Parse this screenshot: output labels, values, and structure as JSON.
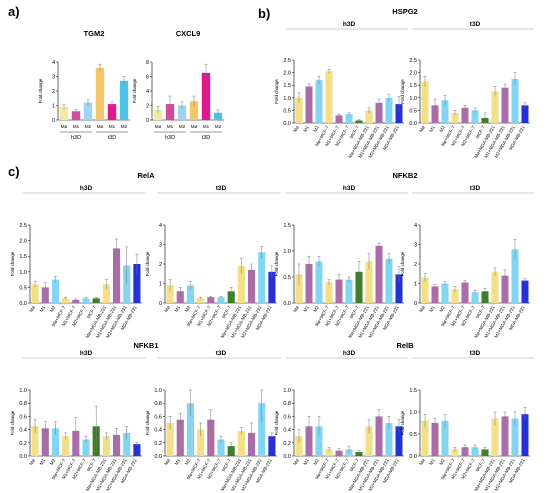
{
  "panels": {
    "a": {
      "letter": "a)"
    },
    "b": {
      "letter": "b)",
      "title": "HSPG2"
    },
    "c": {
      "letter": "c)"
    }
  },
  "colors": {
    "Mø": "#f2df86",
    "M1": "#aa6da8",
    "M2": "#82d6f4",
    "Mø+MCF-7": "#f2df86",
    "M1+MCF-7": "#aa6da8",
    "M2+MCF-7": "#82d6f4",
    "MCF-7": "#3f7d2a",
    "Mø+MDA-MB-231": "#f2df86",
    "M1+MDA-MB-231": "#aa6da8",
    "M2+MDA-MB-231": "#82d6f4",
    "MDA-MB-231": "#2431d6",
    "a_h3D_Mø": "#f6e7a3",
    "a_h3D_M1": "#d14a9e",
    "a_h3D_M2": "#9fd4f5",
    "a_t3D_Mø": "#f2c96a",
    "a_t3D_M1": "#e0188b",
    "a_t3D_M2": "#4fc3e6"
  },
  "chart_data": [
    {
      "id": "TGM2",
      "type": "bar",
      "title": "TGM2",
      "ylabel": "Fold change",
      "ylim": [
        0,
        4
      ],
      "yticks": [
        0,
        1,
        2,
        3,
        4
      ],
      "groups": [
        "h3D",
        "t3D"
      ],
      "categories": [
        "Mø",
        "M1",
        "M2",
        "Mø",
        "M1",
        "M2"
      ],
      "values": [
        0.9,
        0.6,
        1.2,
        3.6,
        1.1,
        2.7
      ],
      "errors": [
        0.15,
        0.15,
        0.2,
        0.25,
        0.15,
        0.3
      ],
      "colors": [
        "a_h3D_Mø",
        "a_h3D_M1",
        "a_h3D_M2",
        "a_t3D_Mø",
        "a_t3D_M1",
        "a_t3D_M2"
      ]
    },
    {
      "id": "CXCL9",
      "type": "bar",
      "title": "CXCL9",
      "ylabel": "Fold change",
      "ylim": [
        0,
        8
      ],
      "yticks": [
        0,
        2,
        4,
        6,
        8
      ],
      "groups": [
        "h3D",
        "t3D"
      ],
      "categories": [
        "Mø",
        "M1",
        "M2",
        "Mø",
        "M1",
        "M2"
      ],
      "values": [
        1.4,
        2.2,
        2.0,
        2.6,
        6.5,
        1.0
      ],
      "errors": [
        0.5,
        1.1,
        0.5,
        0.7,
        1.2,
        0.4
      ],
      "colors": [
        "a_h3D_Mø",
        "a_h3D_M1",
        "a_h3D_M2",
        "a_t3D_Mø",
        "a_t3D_M1",
        "a_t3D_M2"
      ]
    },
    {
      "id": "HSPG2-h3D",
      "type": "bar",
      "title": "h3D",
      "ylabel": "Fold change",
      "ylim": [
        0,
        2.5
      ],
      "yticks": [
        0.0,
        0.5,
        1.0,
        1.5,
        2.0,
        2.5
      ],
      "categories": [
        "Mø",
        "M1",
        "M2",
        "Mø+MCF-7",
        "M1+MCF-7",
        "M2+MCF-7",
        "MCF-7",
        "Mø+MDA-MB-231",
        "M1+MDA-MB-231",
        "M2+MDA-MB-231",
        "MDA-MB-231"
      ],
      "values": [
        1.0,
        1.45,
        1.7,
        2.05,
        0.3,
        0.35,
        0.1,
        0.5,
        0.8,
        1.0,
        0.75
      ],
      "errors": [
        0.2,
        0.1,
        0.15,
        0.08,
        0.05,
        0.05,
        0.03,
        0.1,
        0.15,
        0.15,
        0.3
      ]
    },
    {
      "id": "HSPG2-t3D",
      "type": "bar",
      "title": "t3D",
      "ylabel": "Fold change",
      "ylim": [
        0,
        2.5
      ],
      "yticks": [
        0.0,
        0.5,
        1.0,
        1.5,
        2.0,
        2.5
      ],
      "categories": [
        "Mø",
        "M1",
        "M2",
        "Mø+MCF-7",
        "M1+MCF-7",
        "M2+MCF-7",
        "MCF-7",
        "Mø+MDA-MB-231",
        "M1+MDA-MB-231",
        "M2+MDA-MB-231",
        "MDA-MB-231"
      ],
      "values": [
        1.65,
        0.7,
        0.9,
        0.4,
        0.6,
        0.5,
        0.2,
        1.25,
        1.4,
        1.75,
        0.7
      ],
      "errors": [
        0.2,
        0.25,
        0.2,
        0.1,
        0.1,
        0.1,
        0.2,
        0.2,
        0.15,
        0.25,
        0.1
      ]
    },
    {
      "id": "RelA-h3D",
      "type": "bar",
      "title": "h3D",
      "ylabel": "Fold change",
      "ylim": [
        0,
        2.5
      ],
      "yticks": [
        0.0,
        0.5,
        1.0,
        1.5,
        2.0,
        2.5
      ],
      "categories": [
        "Mø",
        "M1",
        "M2",
        "Mø+MCF-7",
        "M1+MCF-7",
        "M2+MCF-7",
        "MCF-7",
        "Mø+MDA-MB-231",
        "M1+MDA-MB-231",
        "M2+MDA-MB-231",
        "MDA-MB-231"
      ],
      "values": [
        0.6,
        0.5,
        0.75,
        0.15,
        0.1,
        0.15,
        0.15,
        0.6,
        1.75,
        1.2,
        1.25
      ],
      "errors": [
        0.1,
        0.15,
        0.1,
        0.03,
        0.03,
        0.03,
        0.03,
        0.15,
        0.3,
        0.6,
        0.3
      ]
    },
    {
      "id": "RelA-t3D",
      "type": "bar",
      "title": "t3D",
      "ylabel": "Fold change",
      "ylim": [
        0,
        4
      ],
      "yticks": [
        0,
        1,
        2,
        3,
        4
      ],
      "categories": [
        "Mø",
        "M1",
        "M2",
        "Mø+MCF-7",
        "M1+MCF-7",
        "M2+MCF-7",
        "MCF-7",
        "Mø+MDA-MB-231",
        "M1+MDA-MB-231",
        "M2+MDA-MB-231",
        "MDA-MB-231"
      ],
      "values": [
        0.9,
        0.6,
        0.9,
        0.25,
        0.3,
        0.3,
        0.6,
        1.9,
        1.7,
        2.6,
        1.6
      ],
      "errors": [
        0.3,
        0.2,
        0.2,
        0.05,
        0.05,
        0.05,
        0.2,
        0.4,
        0.3,
        0.3,
        0.3
      ]
    },
    {
      "id": "NFKB2-h3D",
      "type": "bar",
      "title": "h3D",
      "ylabel": "Fold change",
      "ylim": [
        0,
        1.5
      ],
      "yticks": [
        0.0,
        0.5,
        1.0,
        1.5
      ],
      "categories": [
        "Mø",
        "M1",
        "M2",
        "Mø+MCF-7",
        "M1+MCF-7",
        "M2+MCF-7",
        "MCF-7",
        "Mø+MDA-MB-231",
        "M1+MDA-MB-231",
        "M2+MDA-MB-231",
        "MDA-MB-231"
      ],
      "values": [
        0.55,
        0.75,
        0.8,
        0.4,
        0.45,
        0.45,
        0.6,
        0.8,
        1.1,
        0.85,
        0.55
      ],
      "errors": [
        0.2,
        0.15,
        0.1,
        0.05,
        0.1,
        0.05,
        0.2,
        0.15,
        0.05,
        0.1,
        0.15
      ]
    },
    {
      "id": "NFKB2-t3D",
      "type": "bar",
      "title": "t3D",
      "ylabel": "Fold change",
      "ylim": [
        0,
        4
      ],
      "yticks": [
        0,
        1,
        2,
        3,
        4
      ],
      "categories": [
        "Mø",
        "M1",
        "M2",
        "Mø+MCF-7",
        "M1+MCF-7",
        "M2+MCF-7",
        "MCF-7",
        "Mø+MDA-MB-231",
        "M1+MDA-MB-231",
        "M2+MDA-MB-231",
        "MDA-MB-231"
      ],
      "values": [
        1.3,
        0.85,
        1.0,
        0.7,
        1.05,
        0.55,
        0.6,
        1.6,
        1.4,
        2.75,
        1.15
      ],
      "errors": [
        0.2,
        0.1,
        0.1,
        0.15,
        0.1,
        0.1,
        0.15,
        0.2,
        0.3,
        0.5,
        0.1
      ]
    },
    {
      "id": "NFKB1-h3D",
      "type": "bar",
      "title": "h3D",
      "ylabel": "Fold change",
      "ylim": [
        0,
        1.0
      ],
      "yticks": [
        0.0,
        0.2,
        0.4,
        0.6,
        0.8,
        1.0
      ],
      "categories": [
        "Mø",
        "M1",
        "M2",
        "Mø+MCF-7",
        "M1+MCF-7",
        "M2+MCF-7",
        "MCF-7",
        "Mø+MDA-MB-231",
        "M1+MDA-MB-231",
        "M2+MDA-MB-231",
        "MDA-MB-231"
      ],
      "values": [
        0.45,
        0.42,
        0.42,
        0.3,
        0.38,
        0.25,
        0.45,
        0.3,
        0.32,
        0.35,
        0.18
      ],
      "errors": [
        0.1,
        0.1,
        0.1,
        0.05,
        0.2,
        0.05,
        0.3,
        0.05,
        0.1,
        0.1,
        0.03
      ]
    },
    {
      "id": "NFKB1-t3D",
      "type": "bar",
      "title": "t3D",
      "ylabel": "Fold change",
      "ylim": [
        0,
        1.0
      ],
      "yticks": [
        0.0,
        0.2,
        0.4,
        0.6,
        0.8,
        1.0
      ],
      "categories": [
        "Mø",
        "M1",
        "M2",
        "Mø+MCF-7",
        "M1+MCF-7",
        "M2+MCF-7",
        "MCF-7",
        "Mø+MDA-MB-231",
        "M1+MDA-MB-231",
        "M2+MDA-MB-231",
        "MDA-MB-231"
      ],
      "values": [
        0.5,
        0.55,
        0.8,
        0.4,
        0.55,
        0.25,
        0.15,
        0.38,
        0.35,
        0.8,
        0.3
      ],
      "errors": [
        0.1,
        0.1,
        0.2,
        0.1,
        0.15,
        0.05,
        0.05,
        0.05,
        0.15,
        0.3,
        0.05
      ]
    },
    {
      "id": "RelB-h3D",
      "type": "bar",
      "title": "h3D",
      "ylabel": "Fold change",
      "ylim": [
        0,
        1.0
      ],
      "yticks": [
        0.0,
        0.2,
        0.4,
        0.6,
        0.8,
        1.0
      ],
      "categories": [
        "Mø",
        "M1",
        "M2",
        "Mø+MCF-7",
        "M1+MCF-7",
        "M2+MCF-7",
        "MCF-7",
        "Mø+MDA-MB-231",
        "M1+MDA-MB-231",
        "M2+MDA-MB-231",
        "MDA-MB-231"
      ],
      "values": [
        0.3,
        0.45,
        0.45,
        0.1,
        0.08,
        0.1,
        0.06,
        0.45,
        0.6,
        0.5,
        0.45
      ],
      "errors": [
        0.1,
        0.15,
        0.15,
        0.03,
        0.03,
        0.05,
        0.02,
        0.1,
        0.1,
        0.1,
        0.1
      ]
    },
    {
      "id": "RelB-t3D",
      "type": "bar",
      "title": "t3D",
      "ylabel": "Fold change",
      "ylim": [
        0,
        1.5
      ],
      "yticks": [
        0.0,
        0.5,
        1.0,
        1.5
      ],
      "categories": [
        "Mø",
        "M1",
        "M2",
        "Mø+MCF-7",
        "M1+MCF-7",
        "M2+MCF-7",
        "MCF-7",
        "Mø+MDA-MB-231",
        "M1+MDA-MB-231",
        "M2+MDA-MB-231",
        "MDA-MB-231"
      ],
      "values": [
        0.8,
        0.75,
        0.8,
        0.15,
        0.2,
        0.2,
        0.15,
        0.85,
        0.9,
        0.85,
        0.95
      ],
      "errors": [
        0.15,
        0.1,
        0.15,
        0.05,
        0.05,
        0.05,
        0.05,
        0.15,
        0.1,
        0.15,
        0.15
      ]
    }
  ],
  "gene_titles": {
    "RelA": "RelA",
    "NFKB2": "NFKB2",
    "NFKB1": "NFKB1",
    "RelB": "RelB"
  }
}
